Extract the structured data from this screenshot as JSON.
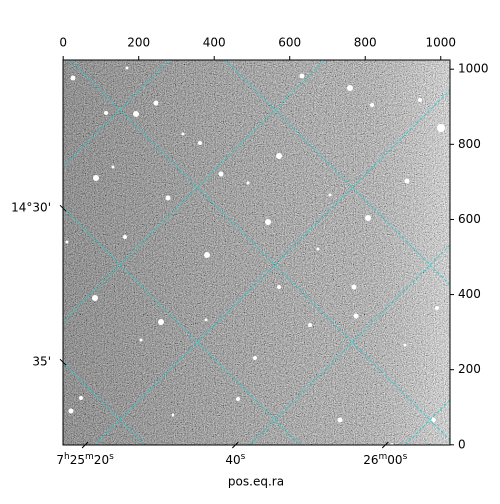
{
  "chart_data": {
    "type": "image",
    "xlabel": "pos.eq.ra",
    "xlim": [
      -0.5,
      1024.5
    ],
    "ylim": [
      -0.5,
      1024.5
    ],
    "xticks": [
      0,
      200,
      400,
      600,
      800,
      1000
    ],
    "yticks": [
      0,
      200,
      400,
      600,
      800,
      1000
    ],
    "world_xticks": [
      {
        "value": 58,
        "label": "7h25m20s"
      },
      {
        "value": 456,
        "label": "40s"
      },
      {
        "value": 853,
        "label": "26m00s"
      }
    ],
    "world_yticks": [
      {
        "value": 630,
        "label": "14°30'"
      },
      {
        "value": 220,
        "label": "35'"
      }
    ],
    "grid": true,
    "grid_color": "#20d0d0"
  }
}
